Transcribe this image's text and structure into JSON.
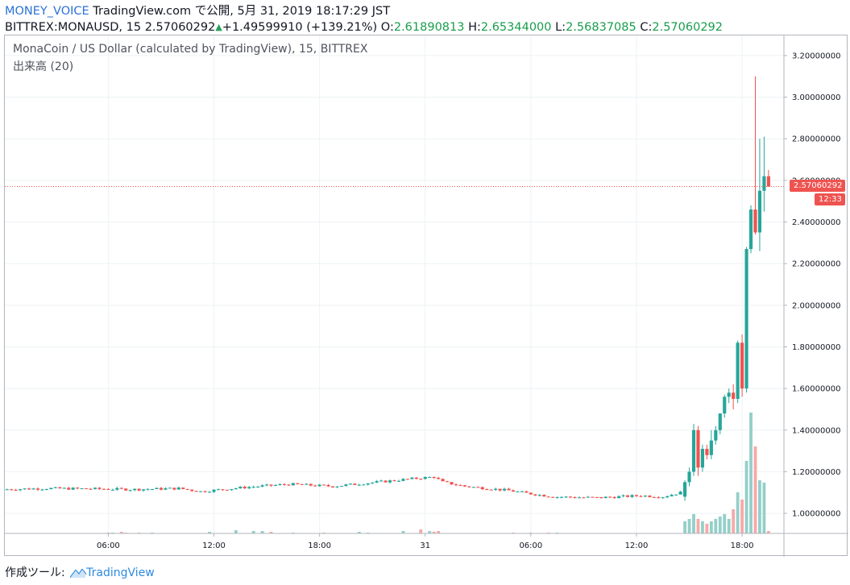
{
  "header": {
    "brand": "MONEY_VOICE",
    "published": "TradingView.com で公開, 5月 31, 2019 18:17:29 JST",
    "symbol_line": "BITTREX:MONAUSD, 15 2.57060292",
    "change": "+1.49599910 (+139.21%)",
    "o_label": "O:",
    "o_value": "2.61890813",
    "h_label": "H:",
    "h_value": "2.65344000",
    "l_label": "L:",
    "l_value": "2.56837085",
    "c_label": "C:",
    "c_value": "2.57060292"
  },
  "legend": {
    "title": "MonaCoin / US Dollar (calculated by TradingView), 15, BITTREX",
    "volume_label": "出来高 (20)"
  },
  "price_badge": {
    "price": "2.57060292",
    "countdown": "12:33"
  },
  "footer": {
    "label": "作成ツール:",
    "brand": "TradingView"
  },
  "colors": {
    "up": "#26a69a",
    "down": "#ef5350",
    "up_volume": "#94cfc9",
    "down_volume": "#f6a9a8",
    "grid": "#edf2f4"
  },
  "chart_data": {
    "type": "candlestick",
    "symbol": "BITTREX:MONAUSD",
    "interval": "15",
    "y_ticks": [
      1.0,
      1.2,
      1.4,
      1.6,
      1.8,
      2.0,
      2.2,
      2.4,
      2.6,
      2.8,
      3.0,
      3.2
    ],
    "y_tick_labels": [
      "1.00000000",
      "1.20000000",
      "1.40000000",
      "1.60000000",
      "1.80000000",
      "2.00000000",
      "2.20000000",
      "2.40000000",
      "2.60000000",
      "2.80000000",
      "3.00000000",
      "3.20000000"
    ],
    "ylim": [
      0.95,
      3.25
    ],
    "x_ticks": [
      "06:00",
      "12:00",
      "18:00",
      "31",
      "06:00",
      "12:00",
      "18:00"
    ],
    "x_tick_bar_index": [
      23,
      47,
      71,
      95,
      119,
      143,
      167
    ],
    "last_price": 2.57060292,
    "bar_count": 170,
    "visible_bar_slots": 177,
    "anchors": [
      [
        0,
        1.115
      ],
      [
        10,
        1.12
      ],
      [
        20,
        1.118
      ],
      [
        30,
        1.115
      ],
      [
        40,
        1.12
      ],
      [
        45,
        1.105
      ],
      [
        55,
        1.125
      ],
      [
        65,
        1.14
      ],
      [
        75,
        1.13
      ],
      [
        85,
        1.15
      ],
      [
        90,
        1.16
      ],
      [
        95,
        1.17
      ],
      [
        98,
        1.175
      ],
      [
        100,
        1.15
      ],
      [
        105,
        1.13
      ],
      [
        115,
        1.11
      ],
      [
        118,
        1.1
      ],
      [
        125,
        1.08
      ],
      [
        135,
        1.075
      ],
      [
        145,
        1.085
      ],
      [
        150,
        1.08
      ],
      [
        154,
        1.1
      ]
    ],
    "volume_ticks": [
      [
        23,
        1
      ],
      [
        24,
        1
      ],
      [
        26,
        2
      ],
      [
        27,
        1
      ],
      [
        30,
        1
      ],
      [
        33,
        1
      ],
      [
        46,
        2
      ],
      [
        52,
        4
      ],
      [
        56,
        3
      ],
      [
        58,
        3
      ],
      [
        60,
        2
      ],
      [
        65,
        1
      ],
      [
        72,
        1
      ],
      [
        80,
        2
      ],
      [
        82,
        1
      ],
      [
        90,
        3
      ],
      [
        94,
        5
      ],
      [
        96,
        3
      ],
      [
        97,
        2
      ],
      [
        98,
        3
      ],
      [
        115,
        1
      ],
      [
        119,
        1
      ],
      [
        123,
        1
      ],
      [
        125,
        1
      ]
    ],
    "rally": [
      {
        "o": 1.08,
        "h": 1.16,
        "l": 1.06,
        "c": 1.15,
        "v": 0.05
      },
      {
        "o": 1.15,
        "h": 1.22,
        "l": 1.13,
        "c": 1.2,
        "v": 0.06
      },
      {
        "o": 1.2,
        "h": 1.43,
        "l": 1.18,
        "c": 1.4,
        "v": 0.08
      },
      {
        "o": 1.4,
        "h": 1.42,
        "l": 1.18,
        "c": 1.22,
        "v": 0.06
      },
      {
        "o": 1.22,
        "h": 1.33,
        "l": 1.2,
        "c": 1.31,
        "v": 0.05
      },
      {
        "o": 1.31,
        "h": 1.33,
        "l": 1.26,
        "c": 1.28,
        "v": 0.04
      },
      {
        "o": 1.28,
        "h": 1.4,
        "l": 1.26,
        "c": 1.35,
        "v": 0.05
      },
      {
        "o": 1.35,
        "h": 1.42,
        "l": 1.33,
        "c": 1.4,
        "v": 0.06
      },
      {
        "o": 1.4,
        "h": 1.48,
        "l": 1.38,
        "c": 1.48,
        "v": 0.07
      },
      {
        "o": 1.48,
        "h": 1.57,
        "l": 1.46,
        "c": 1.56,
        "v": 0.08
      },
      {
        "o": 1.56,
        "h": 1.6,
        "l": 1.53,
        "c": 1.58,
        "v": 0.06
      },
      {
        "o": 1.58,
        "h": 1.62,
        "l": 1.5,
        "c": 1.55,
        "v": 0.1
      },
      {
        "o": 1.55,
        "h": 1.83,
        "l": 1.53,
        "c": 1.82,
        "v": 0.17
      },
      {
        "o": 1.82,
        "h": 1.86,
        "l": 1.56,
        "c": 1.6,
        "v": 0.14
      },
      {
        "o": 1.6,
        "h": 2.28,
        "l": 1.58,
        "c": 2.27,
        "v": 0.3
      },
      {
        "o": 2.27,
        "h": 2.48,
        "l": 2.25,
        "c": 2.46,
        "v": 0.5
      },
      {
        "o": 2.46,
        "h": 3.1,
        "l": 2.34,
        "c": 2.35,
        "v": 0.36
      },
      {
        "o": 2.35,
        "h": 2.8,
        "l": 2.26,
        "c": 2.55,
        "v": 0.22
      },
      {
        "o": 2.55,
        "h": 2.81,
        "l": 2.45,
        "c": 2.62,
        "v": 0.21
      },
      {
        "o": 2.62,
        "h": 2.65,
        "l": 2.57,
        "c": 2.57,
        "v": 0.01
      }
    ]
  }
}
